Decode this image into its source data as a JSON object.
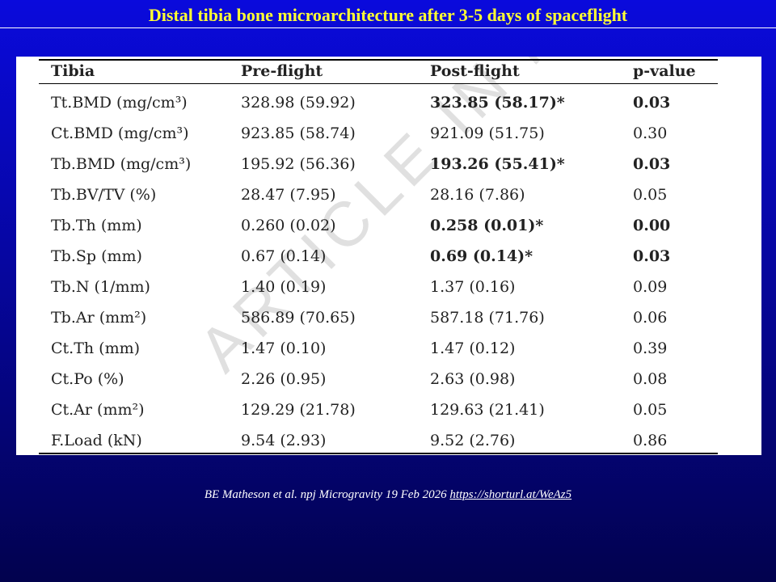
{
  "header": {
    "title": "Distal tibia bone microarchitecture after 3-5 days of spaceflight"
  },
  "table": {
    "columns": [
      "Tibia",
      "Pre-flight",
      "Post-flight",
      "p-value"
    ],
    "rows": [
      {
        "cells": [
          "Tt.BMD (mg/cm³)",
          "328.98 (59.92)",
          "323.85 (58.17)*",
          "0.03"
        ],
        "bold": true
      },
      {
        "cells": [
          "Ct.BMD (mg/cm³)",
          "923.85 (58.74)",
          "921.09 (51.75)",
          "0.30"
        ],
        "bold": false
      },
      {
        "cells": [
          "Tb.BMD (mg/cm³)",
          "195.92 (56.36)",
          "193.26 (55.41)*",
          "0.03"
        ],
        "bold": true
      },
      {
        "cells": [
          "Tb.BV/TV (%)",
          "28.47 (7.95)",
          "28.16 (7.86)",
          "0.05"
        ],
        "bold": false
      },
      {
        "cells": [
          "Tb.Th (mm)",
          "0.260 (0.02)",
          "0.258 (0.01)*",
          "0.00"
        ],
        "bold": true
      },
      {
        "cells": [
          "Tb.Sp (mm)",
          "0.67 (0.14)",
          "0.69 (0.14)*",
          "0.03"
        ],
        "bold": true
      },
      {
        "cells": [
          "Tb.N (1/mm)",
          "1.40 (0.19)",
          "1.37 (0.16)",
          "0.09"
        ],
        "bold": false
      },
      {
        "cells": [
          "Tb.Ar (mm²)",
          "586.89 (70.65)",
          "587.18 (71.76)",
          "0.06"
        ],
        "bold": false
      },
      {
        "cells": [
          "Ct.Th (mm)",
          "1.47 (0.10)",
          "1.47 (0.12)",
          "0.39"
        ],
        "bold": false
      },
      {
        "cells": [
          "Ct.Po (%)",
          "2.26 (0.95)",
          "2.63 (0.98)",
          "0.08"
        ],
        "bold": false
      },
      {
        "cells": [
          "Ct.Ar (mm²)",
          "129.29 (21.78)",
          "129.63 (21.41)",
          "0.05"
        ],
        "bold": false
      },
      {
        "cells": [
          "F.Load (kN)",
          "9.54 (2.93)",
          "9.52 (2.76)",
          "0.86"
        ],
        "bold": false
      }
    ],
    "watermark": "ARTICLE IN PRESS"
  },
  "footer": {
    "citation": "BE Matheson et al. npj Microgravity 19 Feb 2026",
    "link": "https://shorturl.at/WeAz5"
  }
}
